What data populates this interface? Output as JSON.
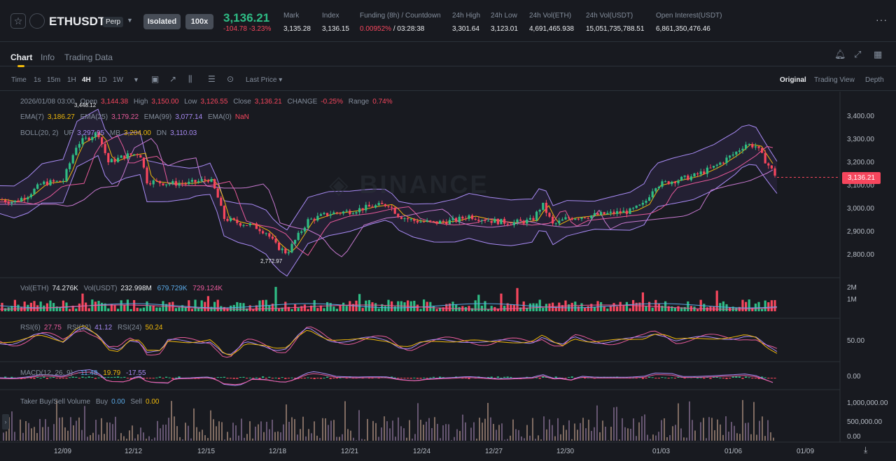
{
  "header": {
    "star_icon": "star-icon",
    "symbol": "ETHUSDT",
    "contract": "Perp",
    "margin_mode": "Isolated",
    "leverage": "100x",
    "last_price": "3,136.21",
    "change": "-104.78 -3.23%",
    "stats": [
      {
        "label": "Mark",
        "value": "3,135.28"
      },
      {
        "label": "Index",
        "value": "3,136.15"
      },
      {
        "label": "Funding (8h) / Countdown",
        "rate": "0.00952%",
        "countdown": "/ 03:28:38"
      },
      {
        "label": "24h High",
        "value": "3,301.64"
      },
      {
        "label": "24h Low",
        "value": "3,123.01"
      },
      {
        "label": "24h Vol(ETH)",
        "value": "4,691,465.938"
      },
      {
        "label": "24h Vol(USDT)",
        "value": "15,051,735,788.51"
      },
      {
        "label": "Open Interest(USDT)",
        "value": "6,861,350,476.46"
      }
    ]
  },
  "tabs": [
    "Chart",
    "Info",
    "Trading Data"
  ],
  "toolbar": {
    "intervals": [
      "Time",
      "1s",
      "15m",
      "1H",
      "4H",
      "1D",
      "1W"
    ],
    "selected_interval": "4H",
    "price_type": "Last Price",
    "views": [
      "Original",
      "Trading View",
      "Depth"
    ],
    "selected_view": "Original"
  },
  "ohlc": {
    "date": "2026/01/08 03:00",
    "open_label": "Open",
    "open": "3,144.38",
    "high_label": "High",
    "high": "3,150.00",
    "low_label": "Low",
    "low": "3,126.55",
    "close_label": "Close",
    "close": "3,136.21",
    "change_label": "CHANGE",
    "change": "-0.25%",
    "range_label": "Range",
    "range": "0.74%"
  },
  "ema": {
    "ema7_label": "EMA(7)",
    "ema7": "3,186.27",
    "ema25_label": "EMA(25)",
    "ema25": "3,179.22",
    "ema99_label": "EMA(99)",
    "ema99": "3,077.14",
    "ema0_label": "EMA(0)",
    "ema0": "NaN"
  },
  "boll": {
    "label": "BOLL(20, 2)",
    "up_label": "UP",
    "up": "3,297.95",
    "mb_label": "MB",
    "mb": "3,204.00",
    "dn_label": "DN",
    "dn": "3,110.03"
  },
  "price_axis": [
    "3,400.00",
    "3,300.00",
    "3,200.00",
    "3,100.00",
    "3,000.00",
    "2,900.00",
    "2,800.00"
  ],
  "current_price_tag": "3,136.21",
  "high_mark": "3,448.12",
  "low_mark": "2,772.97",
  "watermark": "BINANCE",
  "volume": {
    "eth_label": "Vol(ETH)",
    "eth": "74.276K",
    "usdt_label": "Vol(USDT)",
    "usdt": "232.998M",
    "ma1": "679.729K",
    "ma2": "729.124K",
    "axis": [
      "2M",
      "1M"
    ]
  },
  "rsi": {
    "rsi6_label": "RSI(6)",
    "rsi6": "27.75",
    "rsi12_label": "RSI(12)",
    "rsi12": "41.12",
    "rsi24_label": "RSI(24)",
    "rsi24": "50.24",
    "axis": "50.00"
  },
  "macd": {
    "label": "MACD(12, 26, 9)",
    "v1": "-11.48",
    "v2": "19.79",
    "v3": "-17.55",
    "axis": "0.00"
  },
  "taker": {
    "label": "Taker Buy/Sell Volume",
    "buy_label": "Buy",
    "buy": "0.00",
    "sell_label": "Sell",
    "sell": "0.00",
    "axis": [
      "1,000,000.00",
      "500,000.00",
      "0.00"
    ]
  },
  "x_axis": [
    "12/09",
    "12/12",
    "12/15",
    "12/18",
    "12/21",
    "12/24",
    "12/27",
    "12/30",
    "01/03",
    "01/06",
    "01/09"
  ],
  "colors": {
    "up": "#2ebd85",
    "down": "#f6465d",
    "accent": "#f0b90b",
    "bg": "#181a20"
  }
}
